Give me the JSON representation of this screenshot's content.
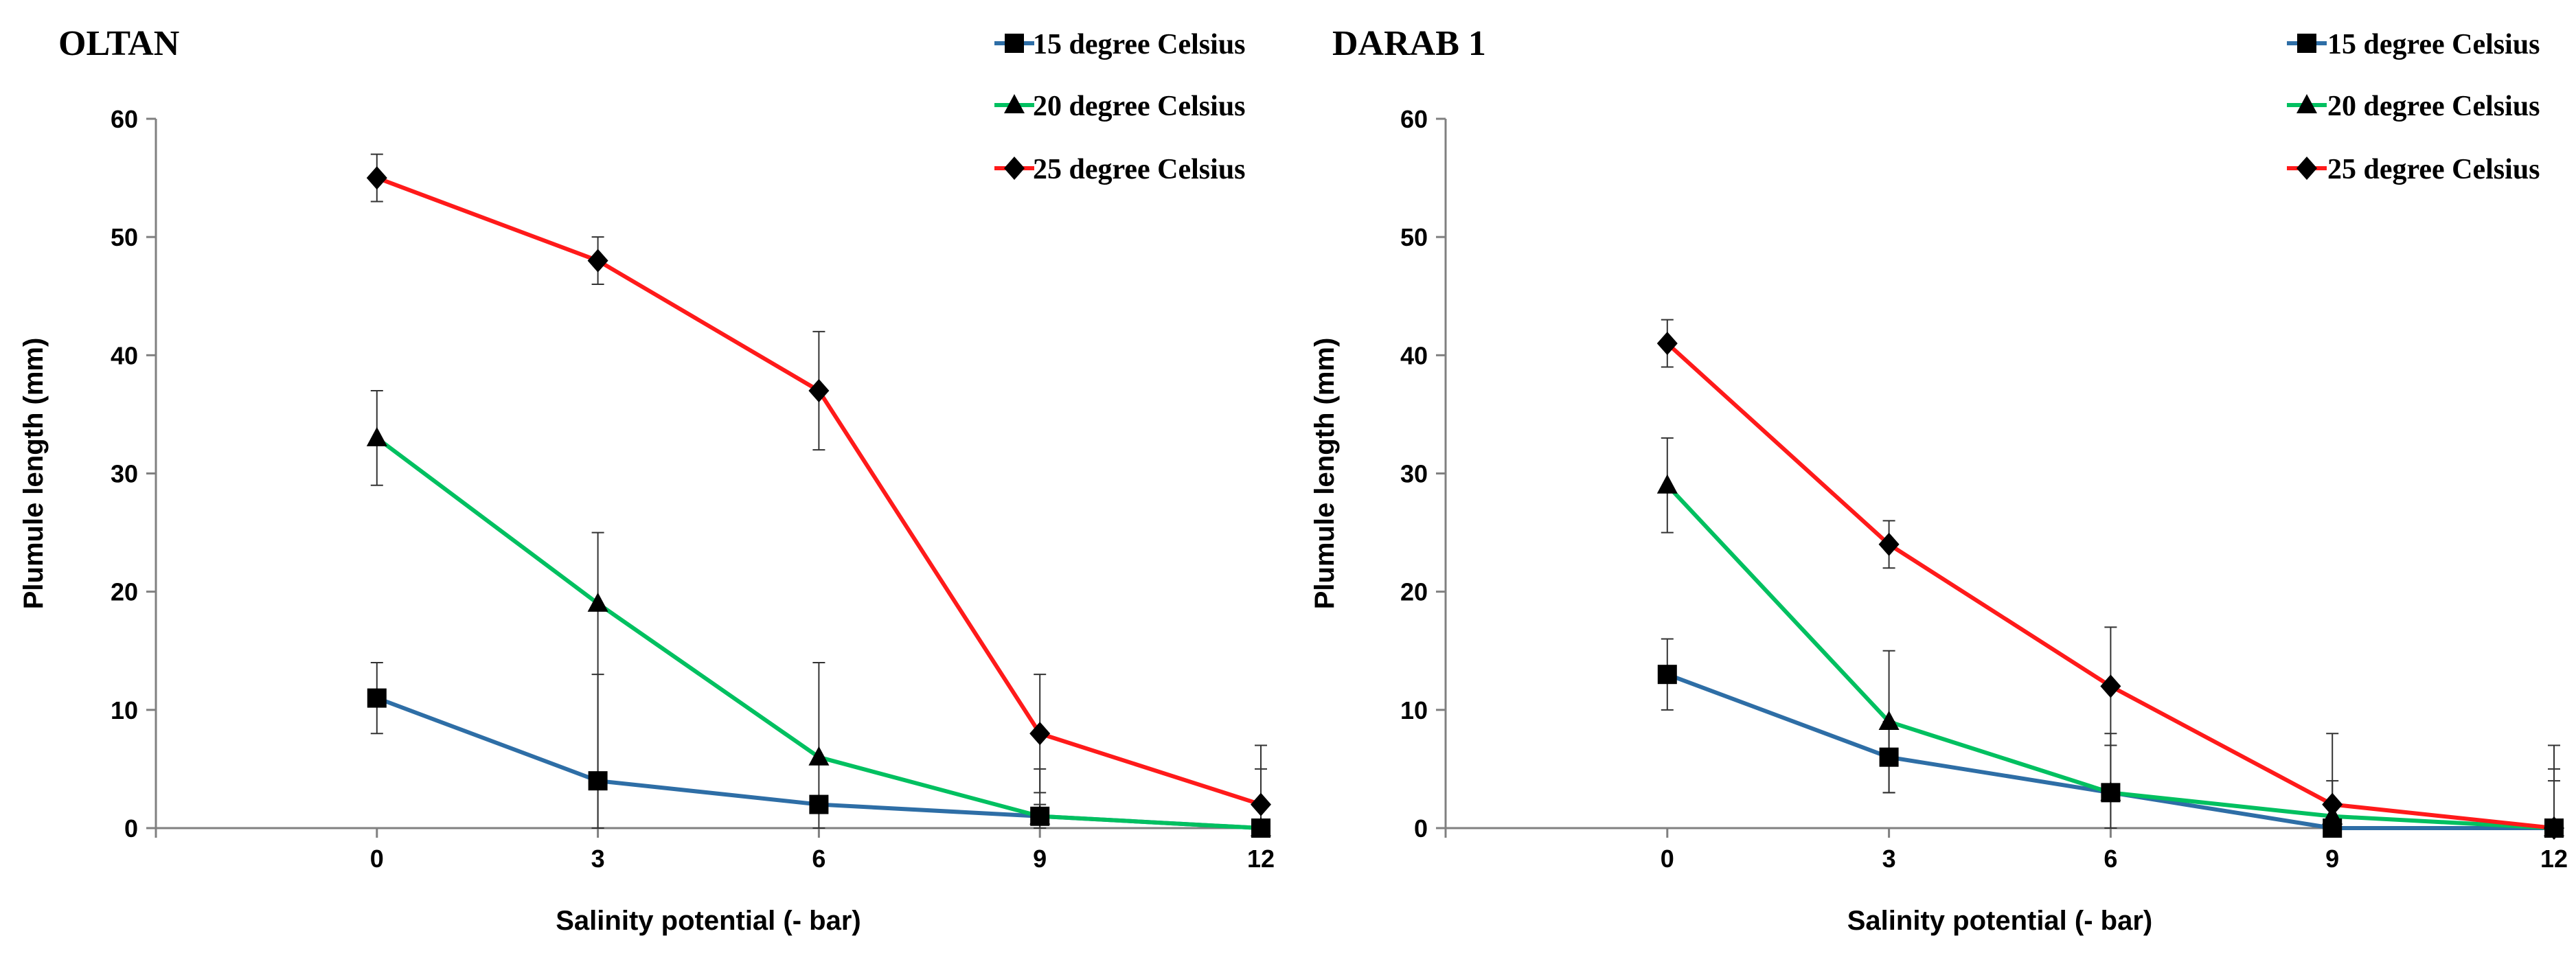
{
  "chart_data": [
    {
      "type": "line",
      "title": "OLTAN",
      "xlabel": "Salinity potential  (- bar)",
      "ylabel": "Plumule length (mm)",
      "categories": [
        "0",
        "3",
        "6",
        "9",
        "12"
      ],
      "x": [
        0,
        3,
        6,
        9,
        12
      ],
      "xlim": [
        -3,
        12
      ],
      "ylim": [
        0,
        60
      ],
      "yticks": [
        "0",
        "10",
        "20",
        "30",
        "40",
        "50",
        "60"
      ],
      "legend_position": "top-right",
      "series": [
        {
          "name": "15 degree Celsius",
          "color": "#2e6ea6",
          "marker": "square",
          "values": [
            11,
            4,
            2,
            1,
            0
          ],
          "error_upper": [
            14,
            13,
            2,
            2,
            0
          ],
          "error_lower": [
            8,
            0,
            2,
            0,
            0
          ]
        },
        {
          "name": "20 degree Celsius",
          "color": "#00c060",
          "marker": "triangle",
          "values": [
            33,
            19,
            6,
            1,
            0
          ],
          "error_upper": [
            37,
            25,
            14,
            5,
            5
          ],
          "error_lower": [
            29,
            0,
            0,
            0,
            0
          ]
        },
        {
          "name": "25 degree Celsius",
          "color": "#ff1a1a",
          "marker": "diamond",
          "values": [
            55,
            48,
            37,
            8,
            2
          ],
          "error_upper": [
            57,
            50,
            42,
            13,
            7
          ],
          "error_lower": [
            53,
            46,
            32,
            3,
            0
          ]
        }
      ]
    },
    {
      "type": "line",
      "title": "DARAB 1",
      "xlabel": "Salinity potential  (- bar)",
      "ylabel": "Plumule length (mm)",
      "categories": [
        "0",
        "3",
        "6",
        "9",
        "12"
      ],
      "x": [
        0,
        3,
        6,
        9,
        12
      ],
      "xlim": [
        -3,
        12
      ],
      "ylim": [
        0,
        60
      ],
      "yticks": [
        "0",
        "10",
        "20",
        "30",
        "40",
        "50",
        "60"
      ],
      "legend_position": "top-right",
      "series": [
        {
          "name": "15 degree Celsius",
          "color": "#2e6ea6",
          "marker": "square",
          "values": [
            13,
            6,
            3,
            0,
            0
          ],
          "error_upper": [
            16,
            9,
            8,
            0,
            4
          ],
          "error_lower": [
            10,
            3,
            0,
            0,
            0
          ]
        },
        {
          "name": "20 degree Celsius",
          "color": "#00c060",
          "marker": "triangle",
          "values": [
            29,
            9,
            3,
            1,
            0
          ],
          "error_upper": [
            33,
            15,
            7,
            4,
            5
          ],
          "error_lower": [
            25,
            3,
            0,
            0,
            0
          ]
        },
        {
          "name": "25 degree Celsius",
          "color": "#ff1a1a",
          "marker": "diamond",
          "values": [
            41,
            24,
            12,
            2,
            0
          ],
          "error_upper": [
            43,
            26,
            17,
            8,
            7
          ],
          "error_lower": [
            39,
            22,
            7,
            0,
            0
          ]
        }
      ]
    }
  ]
}
